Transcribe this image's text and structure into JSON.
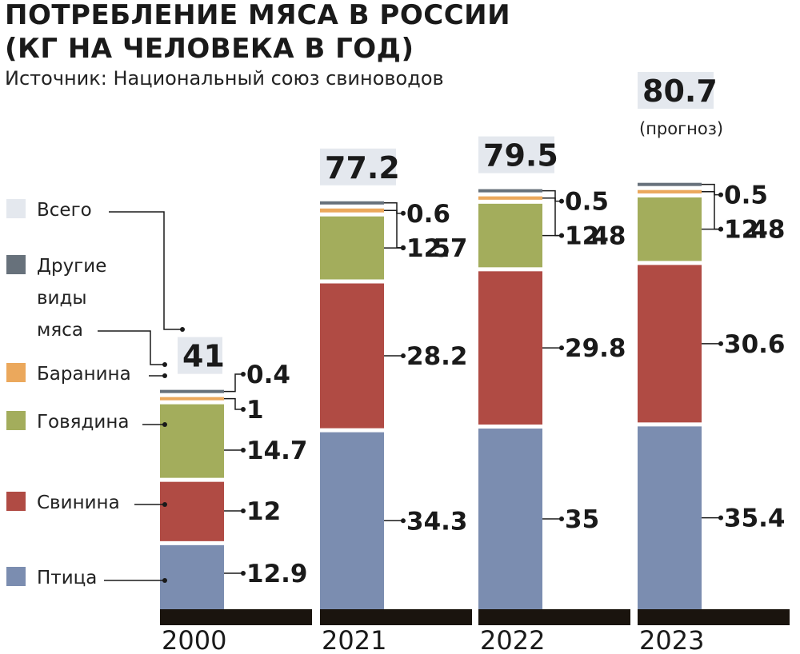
{
  "chart_data": {
    "type": "bar",
    "stacked": true,
    "title": "ПОТРЕБЛЕНИЕ МЯСА В РОССИИ (КГ НА ЧЕЛОВЕКА В ГОД)",
    "title_lines": [
      "ПОТРЕБЛЕНИЕ МЯСА В РОССИИ",
      "(КГ НА ЧЕЛОВЕКА В ГОД)"
    ],
    "subtitle": "Источник: Национальный союз свиноводов",
    "categories": [
      "2000",
      "2021",
      "2022",
      "2023"
    ],
    "series": [
      {
        "name": "Птица",
        "color": "#7b8db0",
        "values": [
          12.9,
          34.3,
          35,
          35.4
        ],
        "labels": [
          "12.9",
          "34.3",
          "35",
          "35.4"
        ]
      },
      {
        "name": "Свинина",
        "color": "#b04b44",
        "values": [
          12,
          28.2,
          29.8,
          30.6
        ],
        "labels": [
          "12",
          "28.2",
          "29.8",
          "30.6"
        ]
      },
      {
        "name": "Говядина",
        "color": "#a3ad5c",
        "values": [
          14.7,
          12.7,
          12.8,
          12.8
        ],
        "labels": [
          "14.7",
          "12.7",
          "12.8",
          "12.8"
        ]
      },
      {
        "name": "Баранина",
        "color": "#eba85c",
        "values": [
          1,
          1.5,
          1.4,
          1.4
        ],
        "labels": [
          "1",
          "1.5",
          "1.4",
          "1.4"
        ]
      },
      {
        "name": "Другие виды мяса",
        "legend_lines": [
          "Другие",
          "виды",
          "мяса"
        ],
        "color": "#67717b",
        "values": [
          0.4,
          0.6,
          0.5,
          0.5
        ],
        "labels": [
          "0.4",
          "0.6",
          "0.5",
          "0.5"
        ]
      }
    ],
    "totals": {
      "name": "Всего",
      "color": "#e4e8ee",
      "values": [
        41,
        77.2,
        79.5,
        80.7
      ],
      "labels": [
        "41",
        "77.2",
        "79.5",
        "80.7"
      ]
    },
    "annotations": [
      {
        "category": "2023",
        "text": "(прогноз)"
      }
    ],
    "ylim": [
      0,
      80.7
    ],
    "grid": false,
    "legend_position": "left"
  }
}
